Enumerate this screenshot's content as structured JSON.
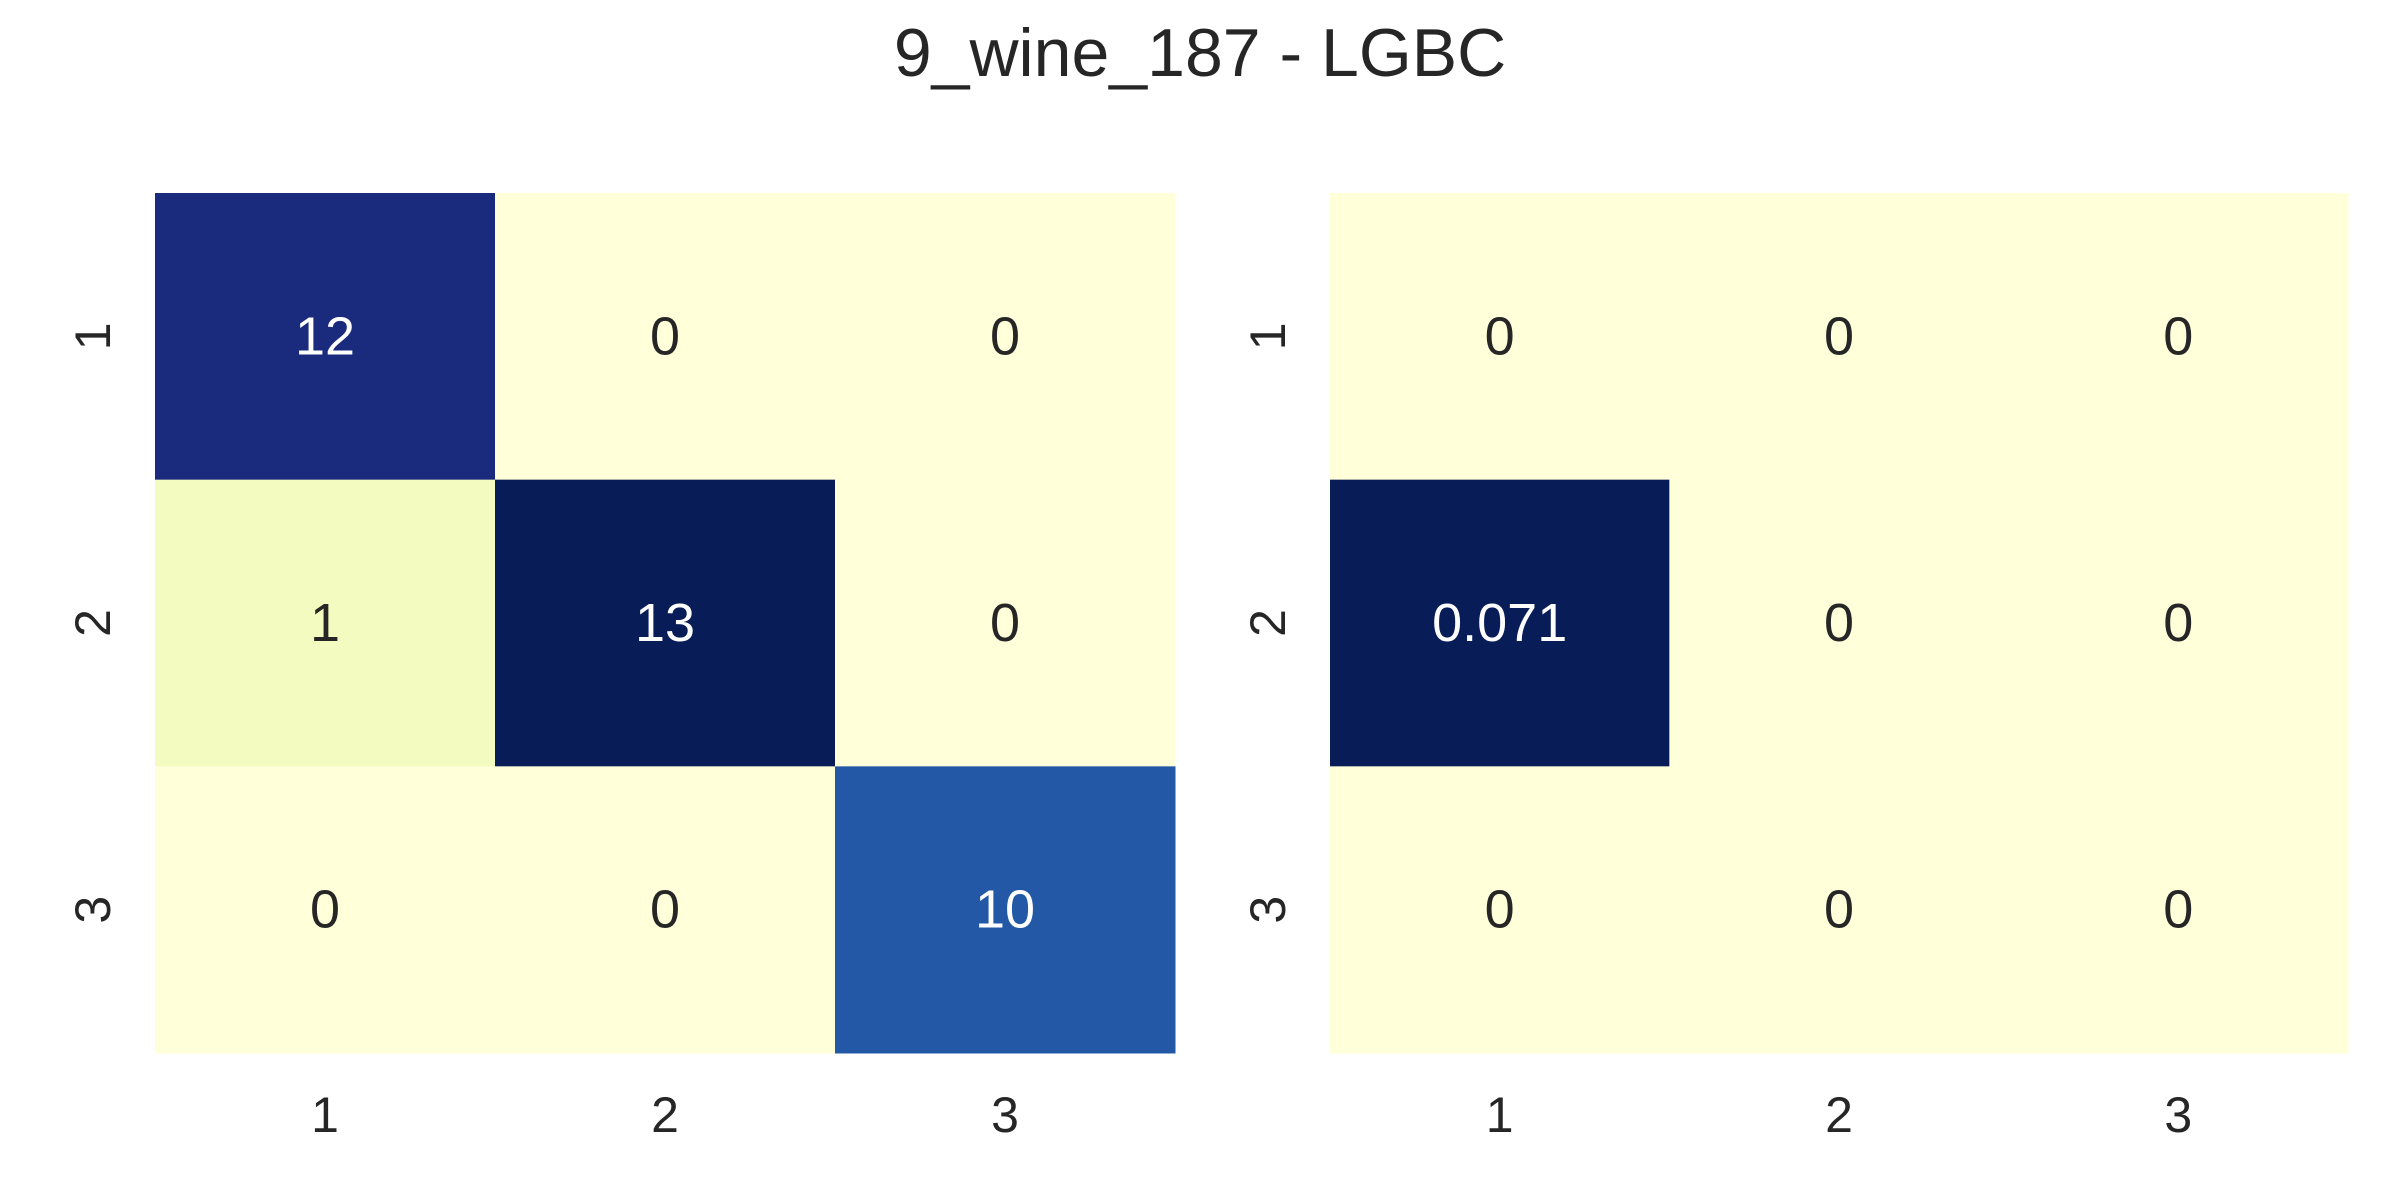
{
  "title": "9_wine_187 - LGBC",
  "chart_data": [
    {
      "type": "heatmap",
      "rows": [
        "1",
        "2",
        "3"
      ],
      "columns": [
        "1",
        "2",
        "3"
      ],
      "values": [
        [
          12,
          0,
          0
        ],
        [
          1,
          13,
          0
        ],
        [
          0,
          0,
          10
        ]
      ],
      "labels": [
        [
          "12",
          "0",
          "0"
        ],
        [
          "1",
          "13",
          "0"
        ],
        [
          "0",
          "0",
          "10"
        ]
      ],
      "colormap": "YlGnBu",
      "colorbar": false,
      "grid": false
    },
    {
      "type": "heatmap",
      "rows": [
        "1",
        "2",
        "3"
      ],
      "columns": [
        "1",
        "2",
        "3"
      ],
      "values": [
        [
          0,
          0,
          0
        ],
        [
          0.071,
          0,
          0
        ],
        [
          0,
          0,
          0
        ]
      ],
      "labels": [
        [
          "0",
          "0",
          "0"
        ],
        [
          "0.071",
          "0",
          "0"
        ],
        [
          "0",
          "0",
          "0"
        ]
      ],
      "colormap": "YlGnBu",
      "colorbar": false,
      "grid": false
    }
  ]
}
